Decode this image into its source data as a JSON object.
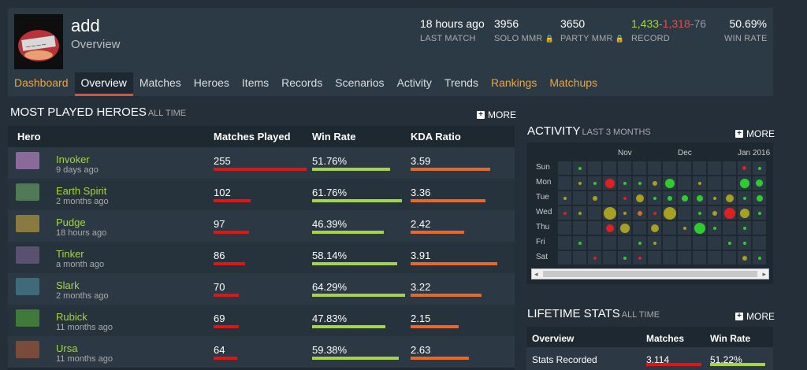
{
  "profile": {
    "name": "add",
    "subtitle": "Overview",
    "stats": {
      "last_match": {
        "value": "18 hours ago",
        "label": "LAST MATCH"
      },
      "solo_mmr": {
        "value": "3956",
        "label": "SOLO MMR",
        "lock": "🔒"
      },
      "party_mmr": {
        "value": "3650",
        "label": "PARTY MMR",
        "lock": "🔒"
      },
      "record": {
        "wins": "1,433",
        "sep1": "-",
        "losses": "1,318",
        "sep2": "-",
        "abandons": "76",
        "label": "RECORD"
      },
      "win_rate": {
        "value": "50.69%",
        "label": "WIN RATE"
      }
    }
  },
  "tabs": [
    {
      "label": "Dashboard",
      "style": "orange"
    },
    {
      "label": "Overview",
      "style": "active"
    },
    {
      "label": "Matches",
      "style": "normal"
    },
    {
      "label": "Heroes",
      "style": "normal"
    },
    {
      "label": "Items",
      "style": "normal"
    },
    {
      "label": "Records",
      "style": "normal"
    },
    {
      "label": "Scenarios",
      "style": "normal"
    },
    {
      "label": "Activity",
      "style": "normal"
    },
    {
      "label": "Trends",
      "style": "normal"
    },
    {
      "label": "Rankings",
      "style": "orange"
    },
    {
      "label": "Matchups",
      "style": "orange"
    }
  ],
  "most_played": {
    "title": "MOST PLAYED HEROES",
    "subtitle": "ALL TIME",
    "more": "MORE",
    "columns": {
      "hero": "Hero",
      "matches": "Matches Played",
      "winrate": "Win Rate",
      "kda": "KDA Ratio"
    },
    "rows": [
      {
        "name": "Invoker",
        "time": "9 days ago",
        "matches": "255",
        "winrate": "51.76%",
        "kda": "3.59",
        "matches_frac": 1.0,
        "winrate_frac": 0.8,
        "kda_frac": 0.92,
        "icon_color": "#8a6a9a"
      },
      {
        "name": "Earth Spirit",
        "time": "2 months ago",
        "matches": "102",
        "winrate": "61.76%",
        "kda": "3.36",
        "matches_frac": 0.4,
        "winrate_frac": 0.96,
        "kda_frac": 0.86,
        "icon_color": "#4f7a55"
      },
      {
        "name": "Pudge",
        "time": "18 hours ago",
        "matches": "97",
        "winrate": "46.39%",
        "kda": "2.42",
        "matches_frac": 0.38,
        "winrate_frac": 0.72,
        "kda_frac": 0.62,
        "icon_color": "#8a7a40"
      },
      {
        "name": "Tinker",
        "time": "a month ago",
        "matches": "86",
        "winrate": "58.14%",
        "kda": "3.91",
        "matches_frac": 0.34,
        "winrate_frac": 0.9,
        "kda_frac": 1.0,
        "icon_color": "#5a5070"
      },
      {
        "name": "Slark",
        "time": "2 months ago",
        "matches": "70",
        "winrate": "64.29%",
        "kda": "3.22",
        "matches_frac": 0.27,
        "winrate_frac": 1.0,
        "kda_frac": 0.82,
        "icon_color": "#3f6a7a"
      },
      {
        "name": "Rubick",
        "time": "11 months ago",
        "matches": "69",
        "winrate": "47.83%",
        "kda": "2.15",
        "matches_frac": 0.27,
        "winrate_frac": 0.74,
        "kda_frac": 0.55,
        "icon_color": "#3f7a3a"
      },
      {
        "name": "Ursa",
        "time": "11 months ago",
        "matches": "64",
        "winrate": "59.38%",
        "kda": "2.63",
        "matches_frac": 0.25,
        "winrate_frac": 0.92,
        "kda_frac": 0.67,
        "icon_color": "#7a4a3a"
      }
    ]
  },
  "activity": {
    "title": "ACTIVITY",
    "subtitle": "LAST 3 MONTHS",
    "more": "MORE",
    "months": [
      "Nov",
      "Dec",
      "Jan 2016"
    ],
    "days": [
      "Sun",
      "Mon",
      "Tue",
      "Wed",
      "Thu",
      "Fri",
      "Sat"
    ],
    "scroll_left": "◂",
    "scroll_right": "▸",
    "colors": {
      "green": "#2ecc2e",
      "olive": "#a8a020",
      "red": "#e02020",
      "orange": "#d07020"
    },
    "dots": [
      {
        "week": 1,
        "day": 0,
        "size": 4,
        "color": "green"
      },
      {
        "week": 12,
        "day": 0,
        "size": 5,
        "color": "red"
      },
      {
        "week": 13,
        "day": 0,
        "size": 4,
        "color": "green"
      },
      {
        "week": 1,
        "day": 1,
        "size": 4,
        "color": "olive"
      },
      {
        "week": 2,
        "day": 1,
        "size": 4,
        "color": "green"
      },
      {
        "week": 3,
        "day": 1,
        "size": 12,
        "color": "red"
      },
      {
        "week": 4,
        "day": 1,
        "size": 4,
        "color": "green"
      },
      {
        "week": 5,
        "day": 1,
        "size": 4,
        "color": "green"
      },
      {
        "week": 6,
        "day": 1,
        "size": 6,
        "color": "olive"
      },
      {
        "week": 7,
        "day": 1,
        "size": 12,
        "color": "green"
      },
      {
        "week": 9,
        "day": 1,
        "size": 4,
        "color": "olive"
      },
      {
        "week": 12,
        "day": 1,
        "size": 12,
        "color": "green"
      },
      {
        "week": 13,
        "day": 1,
        "size": 9,
        "color": "green"
      },
      {
        "week": 0,
        "day": 2,
        "size": 4,
        "color": "olive"
      },
      {
        "week": 2,
        "day": 2,
        "size": 6,
        "color": "olive"
      },
      {
        "week": 4,
        "day": 2,
        "size": 4,
        "color": "red"
      },
      {
        "week": 5,
        "day": 2,
        "size": 10,
        "color": "olive"
      },
      {
        "week": 6,
        "day": 2,
        "size": 4,
        "color": "green"
      },
      {
        "week": 7,
        "day": 2,
        "size": 6,
        "color": "green"
      },
      {
        "week": 8,
        "day": 2,
        "size": 8,
        "color": "green"
      },
      {
        "week": 9,
        "day": 2,
        "size": 8,
        "color": "green"
      },
      {
        "week": 10,
        "day": 2,
        "size": 4,
        "color": "olive"
      },
      {
        "week": 11,
        "day": 2,
        "size": 10,
        "color": "olive"
      },
      {
        "week": 12,
        "day": 2,
        "size": 4,
        "color": "green"
      },
      {
        "week": 13,
        "day": 2,
        "size": 8,
        "color": "green"
      },
      {
        "week": 0,
        "day": 3,
        "size": 4,
        "color": "red"
      },
      {
        "week": 1,
        "day": 3,
        "size": 4,
        "color": "olive"
      },
      {
        "week": 3,
        "day": 3,
        "size": 16,
        "color": "olive"
      },
      {
        "week": 4,
        "day": 3,
        "size": 4,
        "color": "olive"
      },
      {
        "week": 5,
        "day": 3,
        "size": 6,
        "color": "orange"
      },
      {
        "week": 6,
        "day": 3,
        "size": 4,
        "color": "red"
      },
      {
        "week": 7,
        "day": 3,
        "size": 16,
        "color": "olive"
      },
      {
        "week": 9,
        "day": 3,
        "size": 4,
        "color": "green"
      },
      {
        "week": 10,
        "day": 3,
        "size": 6,
        "color": "olive"
      },
      {
        "week": 11,
        "day": 3,
        "size": 14,
        "color": "red"
      },
      {
        "week": 12,
        "day": 3,
        "size": 12,
        "color": "olive"
      },
      {
        "week": 13,
        "day": 3,
        "size": 4,
        "color": "green"
      },
      {
        "week": 3,
        "day": 4,
        "size": 10,
        "color": "red"
      },
      {
        "week": 4,
        "day": 4,
        "size": 12,
        "color": "olive"
      },
      {
        "week": 6,
        "day": 4,
        "size": 10,
        "color": "olive"
      },
      {
        "week": 8,
        "day": 4,
        "size": 4,
        "color": "olive"
      },
      {
        "week": 9,
        "day": 4,
        "size": 14,
        "color": "green"
      },
      {
        "week": 10,
        "day": 4,
        "size": 4,
        "color": "green"
      },
      {
        "week": 12,
        "day": 4,
        "size": 4,
        "color": "green"
      },
      {
        "week": 1,
        "day": 5,
        "size": 4,
        "color": "green"
      },
      {
        "week": 5,
        "day": 5,
        "size": 4,
        "color": "green"
      },
      {
        "week": 6,
        "day": 5,
        "size": 4,
        "color": "olive"
      },
      {
        "week": 11,
        "day": 5,
        "size": 4,
        "color": "green"
      },
      {
        "week": 12,
        "day": 5,
        "size": 4,
        "color": "green"
      },
      {
        "week": 2,
        "day": 6,
        "size": 4,
        "color": "red"
      },
      {
        "week": 4,
        "day": 6,
        "size": 4,
        "color": "green"
      },
      {
        "week": 5,
        "day": 6,
        "size": 4,
        "color": "red"
      },
      {
        "week": 12,
        "day": 6,
        "size": 6,
        "color": "olive"
      },
      {
        "week": 13,
        "day": 6,
        "size": 4,
        "color": "green"
      }
    ]
  },
  "lifetime": {
    "title": "LIFETIME STATS",
    "subtitle": "ALL TIME",
    "more": "MORE",
    "columns": {
      "overview": "Overview",
      "matches": "Matches",
      "winrate": "Win Rate"
    },
    "row": {
      "label": "Stats Recorded",
      "matches": "3,114",
      "winrate": "51.22%",
      "matches_frac": 1.0,
      "winrate_frac": 0.93
    }
  }
}
